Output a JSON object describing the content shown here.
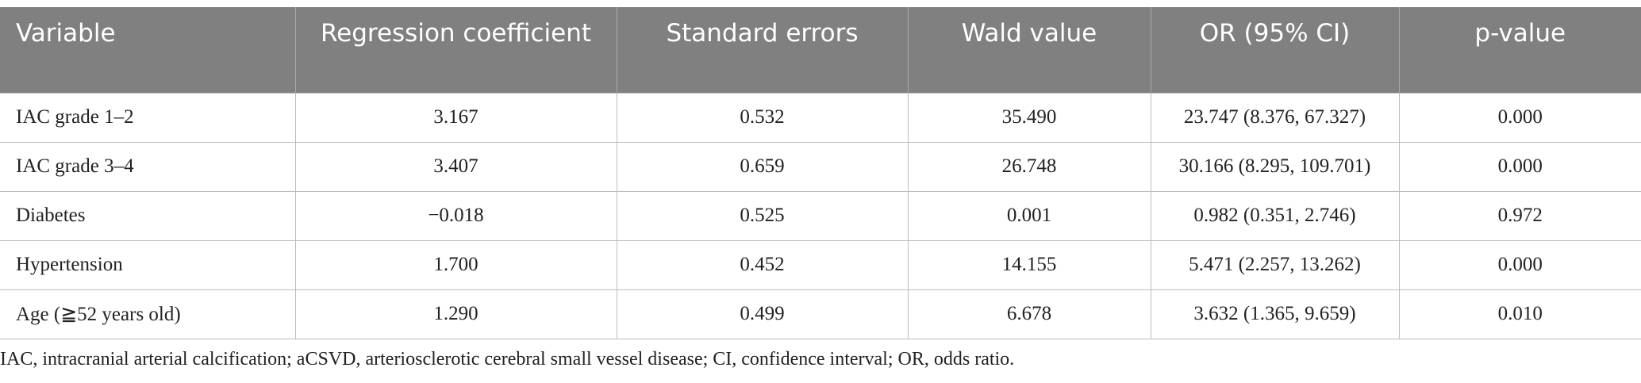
{
  "table": {
    "columns": [
      "Variable",
      "Regression coefficient",
      "Standard errors",
      "Wald value",
      "OR (95% CI)",
      "p-value"
    ],
    "rows": [
      [
        "IAC grade 1–2",
        "3.167",
        "0.532",
        "35.490",
        "23.747 (8.376, 67.327)",
        "0.000"
      ],
      [
        "IAC grade 3–4",
        "3.407",
        "0.659",
        "26.748",
        "30.166 (8.295, 109.701)",
        "0.000"
      ],
      [
        "Diabetes",
        "−0.018",
        "0.525",
        "0.001",
        "0.982 (0.351, 2.746)",
        "0.972"
      ],
      [
        "Hypertension",
        "1.700",
        "0.452",
        "14.155",
        "5.471 (2.257, 13.262)",
        "0.000"
      ],
      [
        "Age (≧52 years old)",
        "1.290",
        "0.499",
        "6.678",
        "3.632 (1.365, 9.659)",
        "0.010"
      ]
    ],
    "footnote": "IAC, intracranial arterial calcification; aCSVD, arteriosclerotic cerebral small vessel disease; CI, confidence interval; OR, odds ratio."
  }
}
